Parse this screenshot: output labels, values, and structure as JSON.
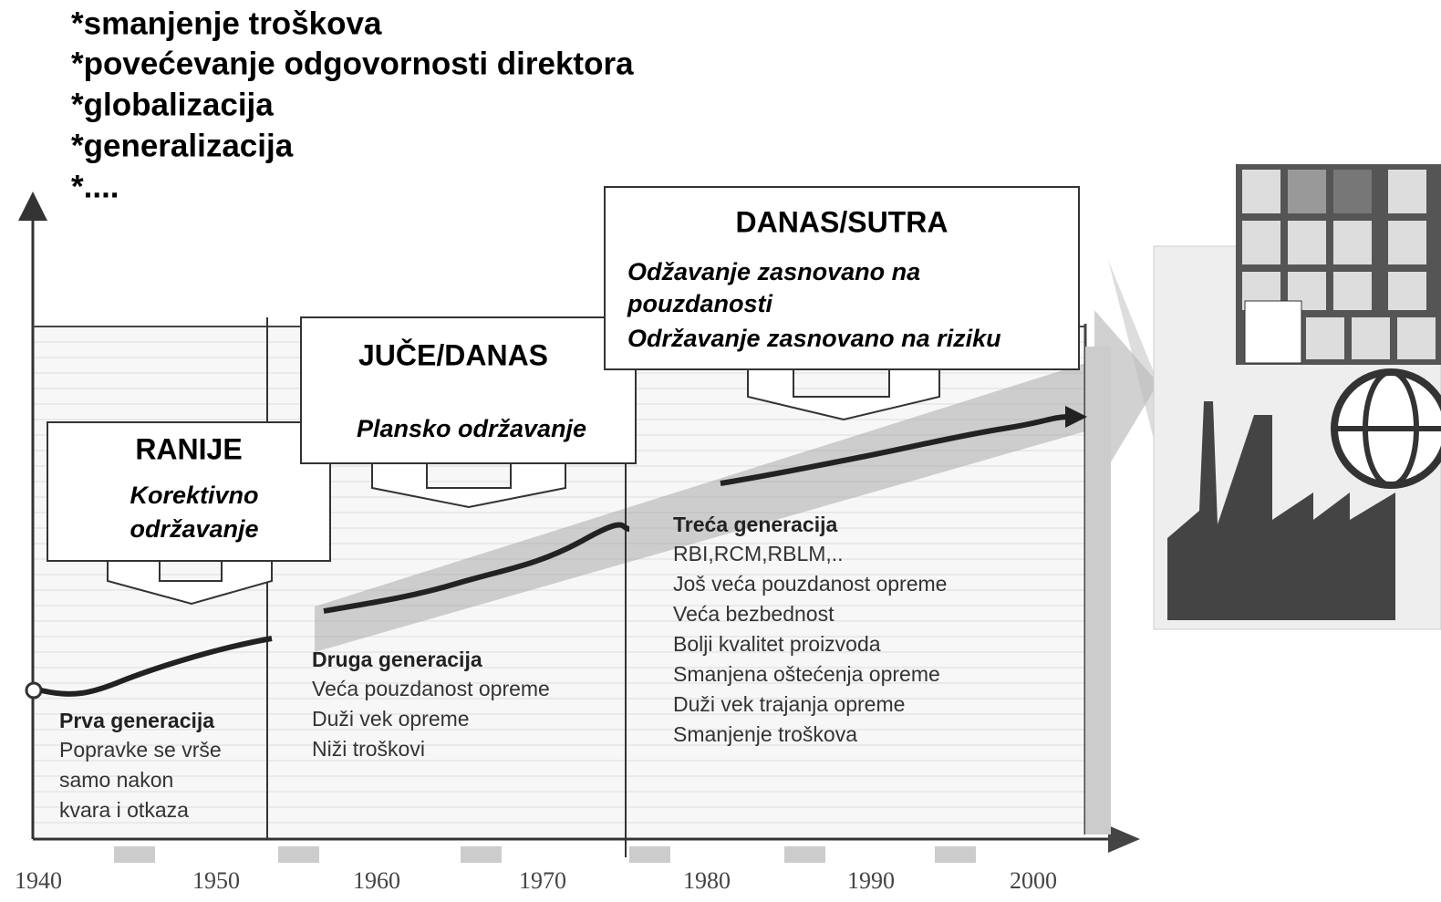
{
  "drivers": [
    "*smanjenje troškova",
    "*povećevanje odgovornosti direktora",
    "*globalizacija",
    "*generalizacija",
    "*...."
  ],
  "periods": [
    {
      "title": "RANIJE",
      "lines": [
        "Korektivno",
        "održavanje"
      ]
    },
    {
      "title": "JUČE/DANAS",
      "lines": [
        "Plansko održavanje"
      ]
    },
    {
      "title": "DANAS/SUTRA",
      "lines": [
        "Odžavanje zasnovano na",
        "pouzdanosti",
        "Održavanje zasnovano na riziku"
      ]
    }
  ],
  "generations": [
    {
      "title": "Prva generacija",
      "lines": [
        "Popravke se vrše",
        "samo nakon",
        "kvara i otkaza"
      ]
    },
    {
      "title": "Druga generacija",
      "lines": [
        "Veća pouzdanost opreme",
        "Duži vek opreme",
        "Niži troškovi"
      ]
    },
    {
      "title": "Treća generacija",
      "lines": [
        "RBI,RCM,RBLM,..",
        "Još veća pouzdanost opreme",
        "Veća bezbednost",
        "Bolji kvalitet proizvoda",
        "Smanjena oštećenja opreme",
        "Duži vek trajanja opreme",
        "Smanjenje troškova"
      ]
    }
  ],
  "years": [
    "1940",
    "1950",
    "1960",
    "1970",
    "1980",
    "1990",
    "2000"
  ]
}
